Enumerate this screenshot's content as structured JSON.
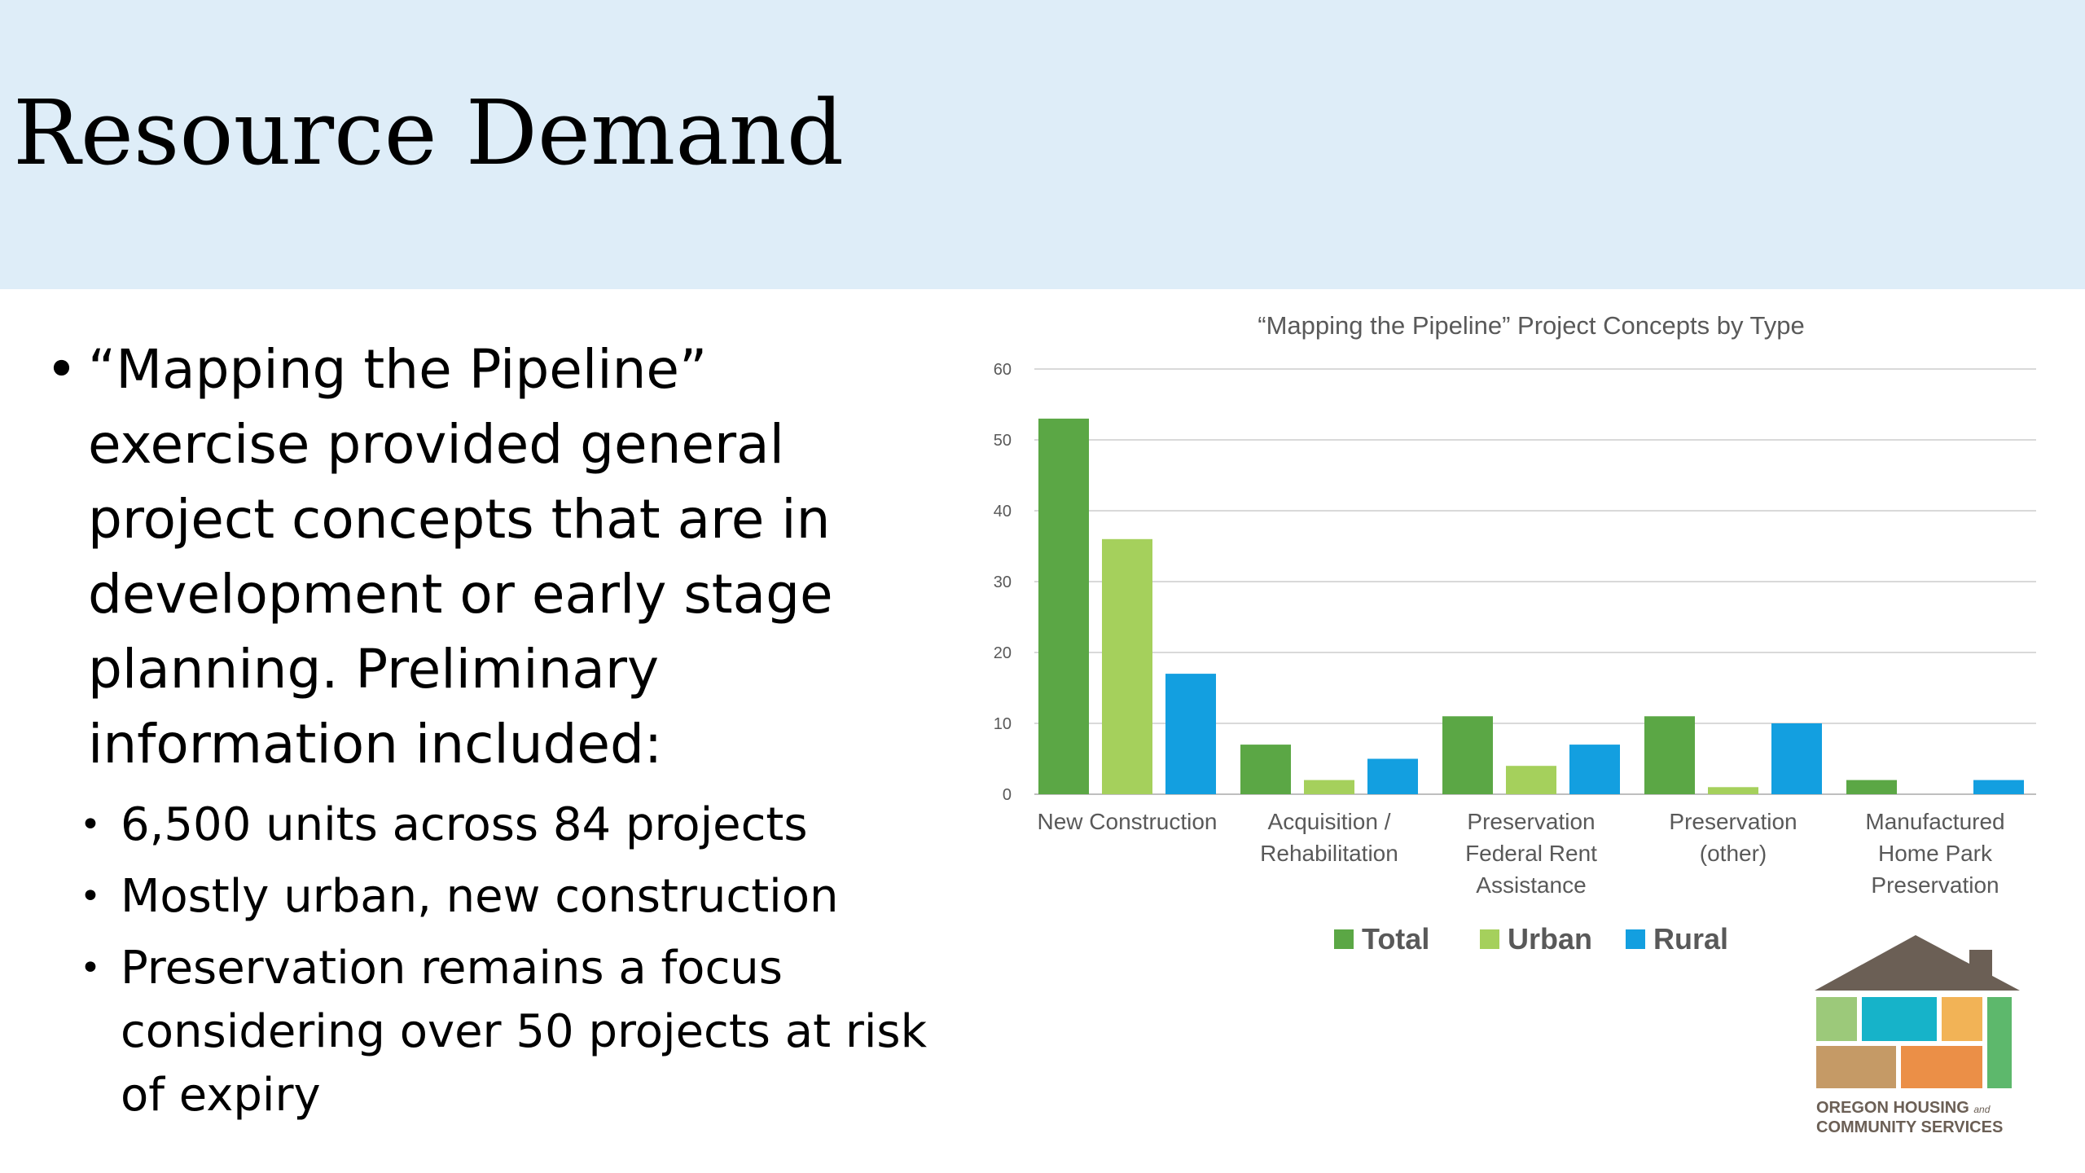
{
  "slide": {
    "title": "Resource Demand",
    "bullet_main": "“Mapping the Pipeline” exercise provided general project concepts that are in development or early stage planning. Preliminary information included:",
    "sub_bullets": [
      "6,500 units across 84 projects",
      "Mostly urban, new construction",
      "Preservation remains a focus considering over 50 projects at risk of expiry"
    ]
  },
  "logo": {
    "line1": "OREGON HOUSING",
    "line1_small": "and",
    "line2": "COMMUNITY SERVICES"
  },
  "chart_data": {
    "type": "bar",
    "title": "“Mapping the Pipeline” Project Concepts by Type",
    "categories": [
      [
        "New Construction"
      ],
      [
        "Acquisition /",
        "Rehabilitation"
      ],
      [
        "Preservation",
        "Federal Rent",
        "Assistance"
      ],
      [
        "Preservation",
        "(other)"
      ],
      [
        "Manufactured",
        "Home Park",
        "Preservation"
      ]
    ],
    "series": [
      {
        "name": "Total",
        "color": "#5ba745",
        "values": [
          53,
          7,
          11,
          11,
          2
        ]
      },
      {
        "name": "Urban",
        "color": "#a5d05c",
        "values": [
          36,
          2,
          4,
          1,
          0
        ]
      },
      {
        "name": "Rural",
        "color": "#139fe0",
        "values": [
          17,
          5,
          7,
          10,
          2
        ]
      }
    ],
    "ylim": [
      0,
      60
    ],
    "yticks": [
      0,
      10,
      20,
      30,
      40,
      50,
      60
    ],
    "grid": true,
    "legend": "bottom"
  }
}
